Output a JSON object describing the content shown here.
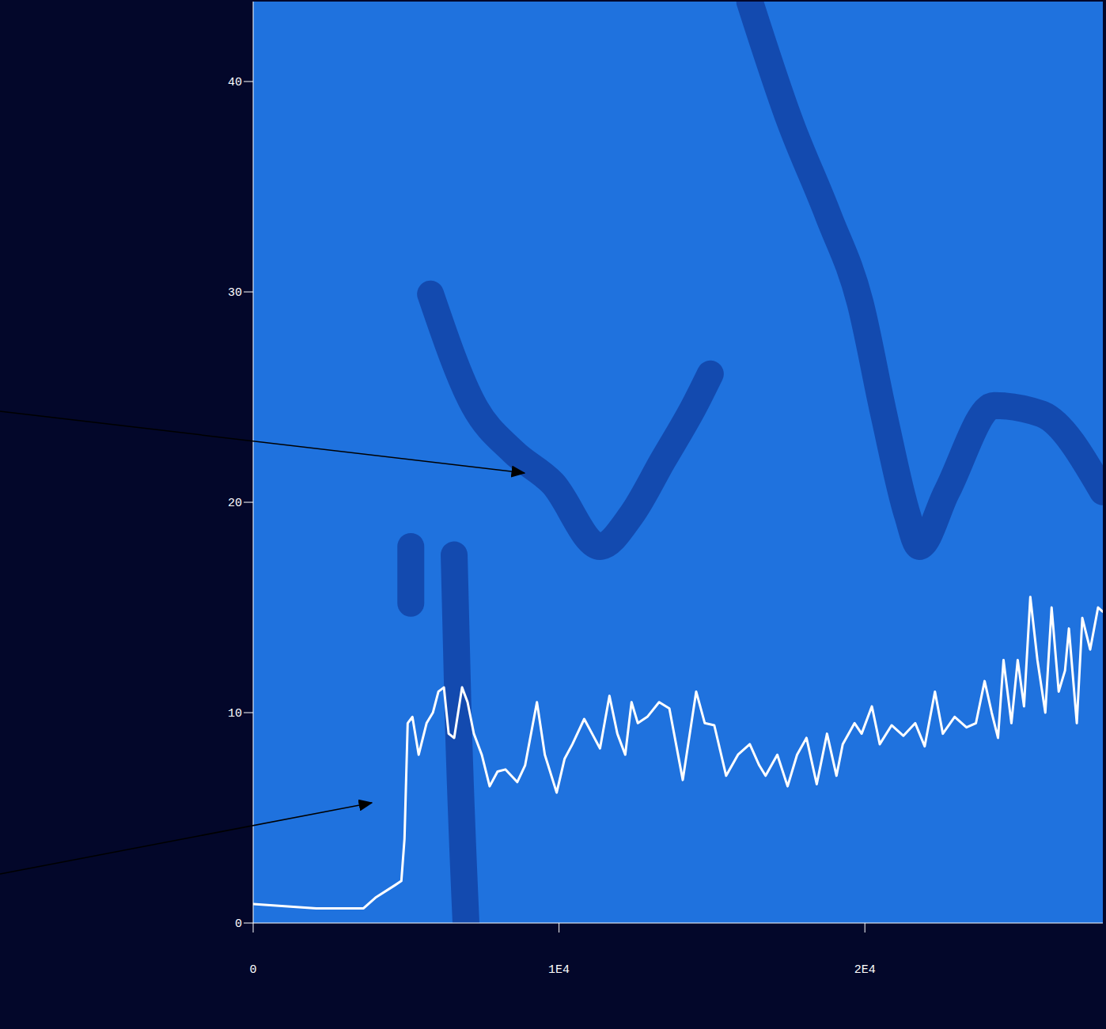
{
  "chart_data": {
    "type": "line",
    "xlim": [
      0,
      27780
    ],
    "xticks": [
      0,
      {
        "value": 10000,
        "label": "1E4"
      },
      {
        "value": 20000,
        "label": "2E4"
      }
    ],
    "ylim": [
      0,
      43.8
    ],
    "yticks": [
      0,
      10,
      20,
      30,
      40
    ],
    "grid": false,
    "tick_labels": true,
    "series": [
      {
        "type": "line",
        "color": "#ffffff",
        "x": [
          0,
          1031,
          2062,
          3093,
          3608,
          3995,
          4639,
          4845,
          4948,
          5052,
          5206,
          5412,
          5670,
          5876,
          6057,
          6237,
          6392,
          6572,
          6830,
          7010,
          7216,
          7474,
          7732,
          7990,
          8247,
          8634,
          8892,
          9278,
          9536,
          9923,
          10180,
          10438,
          10824,
          11082,
          11340,
          11649,
          11907,
          12165,
          12371,
          12577,
          12887,
          13273,
          13608,
          14046,
          14484,
          14766,
          15076,
          15464,
          15851,
          16237,
          16545,
          16753,
          17137,
          17473,
          17783,
          18091,
          18426,
          18762,
          19072,
          19276,
          19663,
          19894,
          20229,
          20487,
          20874,
          21260,
          21647,
          21956,
          22291,
          22549,
          22935,
          23322,
          23631,
          23915,
          24147,
          24353,
          24533,
          24791,
          24997,
          25203,
          25409,
          25641,
          25899,
          26105,
          26337,
          26543,
          26671,
          26929,
          27109,
          27366,
          27624,
          27779
        ],
        "values": [
          0.9,
          0.8,
          0.7,
          0.7,
          0.7,
          1.2,
          1.8,
          2.0,
          4.0,
          9.5,
          9.8,
          8.0,
          9.5,
          10.0,
          11.0,
          11.2,
          9.0,
          8.8,
          11.2,
          10.5,
          9.0,
          8.0,
          6.5,
          7.2,
          7.3,
          6.7,
          7.5,
          10.5,
          8.0,
          6.2,
          7.8,
          8.5,
          9.7,
          9.0,
          8.3,
          10.8,
          9.0,
          8.0,
          10.5,
          9.5,
          9.8,
          10.5,
          10.2,
          6.8,
          11.0,
          9.5,
          9.4,
          7.0,
          8.0,
          8.5,
          7.5,
          7.0,
          8.0,
          6.5,
          8.0,
          8.8,
          6.6,
          9.0,
          7.0,
          8.5,
          9.5,
          9.0,
          10.3,
          8.5,
          9.4,
          8.9,
          9.5,
          8.4,
          11.0,
          9.0,
          9.8,
          9.3,
          9.5,
          11.5,
          10.0,
          8.8,
          12.5,
          9.5,
          12.5,
          10.3,
          15.5,
          12.5,
          10.0,
          15.0,
          11.0,
          12.0,
          14.0,
          9.5,
          14.5,
          13.0,
          15.0,
          14.8
        ]
      },
      {
        "type": "band",
        "color": "#0a2a88",
        "x": [
          5798,
          7216,
          8504,
          9793,
          11339,
          12370,
          13400,
          14431,
          14947
        ],
        "values": [
          29.9,
          24.6,
          22.4,
          20.9,
          17.9,
          19.4,
          22.0,
          24.6,
          26.1
        ]
      },
      {
        "type": "band",
        "color": "#0a2a88",
        "x": [
          16235,
          17524,
          18812,
          19843,
          20616,
          21389,
          21776,
          22678,
          24224,
          25770,
          27780
        ],
        "values": [
          43.8,
          38.2,
          33.6,
          29.5,
          24.2,
          19.4,
          17.9,
          20.5,
          24.6,
          24.2,
          20.5
        ]
      },
      {
        "type": "band",
        "color": "#0a2a88",
        "x": [
          6571,
          6700,
          6958
        ],
        "values": [
          17.5,
          10.0,
          0
        ]
      },
      {
        "type": "band",
        "color": "#0a2a88",
        "x": [
          5154,
          5154
        ],
        "values": [
          17.9,
          15.2
        ]
      }
    ]
  }
}
